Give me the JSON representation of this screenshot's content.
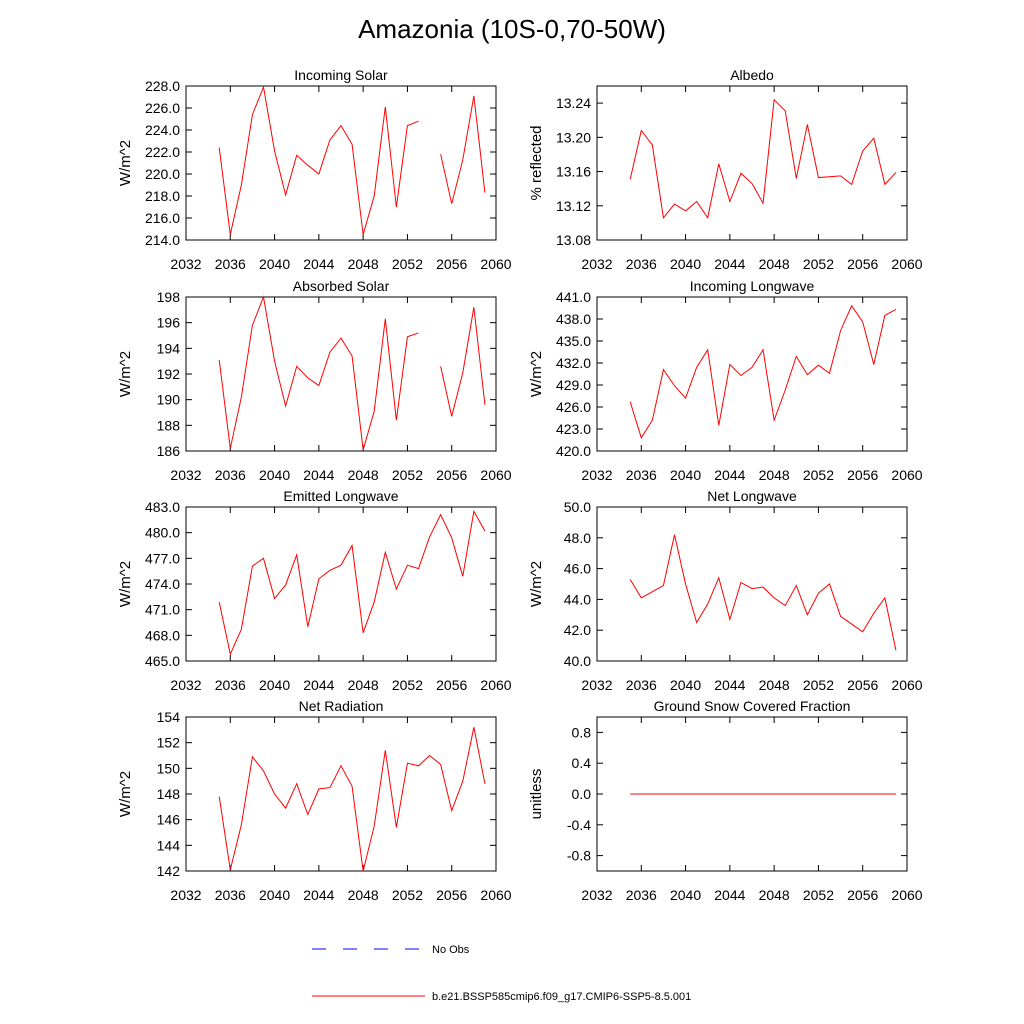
{
  "title": "Amazonia (10S-0,70-50W)",
  "colors": {
    "model": "#ff0000",
    "obs": "#0000ff",
    "axis": "#000000"
  },
  "legend": {
    "obs_label": "No Obs",
    "model_label": "b.e21.BSSP585cmip6.f09_g17.CMIP6-SSP5-8.5.001"
  },
  "chart_data": [
    {
      "type": "line",
      "title": "Incoming Solar",
      "xlabel": "",
      "ylabel": "W/m^2",
      "xlim": [
        2032,
        2060
      ],
      "ylim": [
        214,
        228
      ],
      "xticks": [
        2032,
        2036,
        2040,
        2044,
        2048,
        2052,
        2056,
        2060
      ],
      "yticks": [
        214,
        216,
        218,
        220,
        222,
        224,
        226,
        228
      ],
      "ytick_labels": [
        "214.0",
        "216.0",
        "218.0",
        "220.0",
        "222.0",
        "224.0",
        "226.0",
        "228.0"
      ],
      "x": [
        2035,
        2036,
        2037,
        2038,
        2039,
        2040,
        2041,
        2042,
        2043,
        2044,
        2045,
        2046,
        2047,
        2048,
        2049,
        2050,
        2051,
        2052,
        2053,
        2054,
        2055,
        2056,
        2057,
        2058,
        2059
      ],
      "series": [
        {
          "name": "b.e21.BSSP585cmip6.f09_g17.CMIP6-SSP5-8.5.001",
          "values": [
            222.4,
            214.5,
            219.0,
            225.4,
            227.9,
            222.1,
            218.1,
            221.7,
            220.8,
            220.0,
            223.1,
            224.4,
            222.7,
            214.5,
            218.0,
            226.1,
            217.0,
            224.4,
            224.8,
            null,
            221.8,
            217.3,
            221.3,
            227.1,
            218.3
          ]
        }
      ]
    },
    {
      "type": "line",
      "title": "Albedo",
      "xlabel": "",
      "ylabel": "% reflected",
      "xlim": [
        2032,
        2060
      ],
      "ylim": [
        13.08,
        13.26
      ],
      "xticks": [
        2032,
        2036,
        2040,
        2044,
        2048,
        2052,
        2056,
        2060
      ],
      "yticks": [
        13.08,
        13.12,
        13.16,
        13.2,
        13.24
      ],
      "ytick_labels": [
        "13.08",
        "13.12",
        "13.16",
        "13.20",
        "13.24"
      ],
      "x": [
        2035,
        2036,
        2037,
        2038,
        2039,
        2040,
        2041,
        2042,
        2043,
        2044,
        2045,
        2046,
        2047,
        2048,
        2049,
        2050,
        2051,
        2052,
        2053,
        2054,
        2055,
        2056,
        2057,
        2058,
        2059
      ],
      "series": [
        {
          "name": "b.e21.BSSP585cmip6.f09_g17.CMIP6-SSP5-8.5.001",
          "values": [
            13.151,
            13.208,
            13.191,
            13.106,
            13.122,
            13.114,
            13.125,
            13.106,
            13.169,
            13.125,
            13.158,
            13.146,
            13.123,
            13.244,
            13.231,
            13.152,
            13.215,
            13.153,
            13.154,
            13.155,
            13.145,
            13.184,
            13.199,
            13.145,
            13.159
          ]
        }
      ]
    },
    {
      "type": "line",
      "title": "Absorbed Solar",
      "xlabel": "",
      "ylabel": "W/m^2",
      "xlim": [
        2032,
        2060
      ],
      "ylim": [
        186,
        198
      ],
      "xticks": [
        2032,
        2036,
        2040,
        2044,
        2048,
        2052,
        2056,
        2060
      ],
      "yticks": [
        186,
        188,
        190,
        192,
        194,
        196,
        198
      ],
      "ytick_labels": [
        "186",
        "188",
        "190",
        "192",
        "194",
        "196",
        "198"
      ],
      "x": [
        2035,
        2036,
        2037,
        2038,
        2039,
        2040,
        2041,
        2042,
        2043,
        2044,
        2045,
        2046,
        2047,
        2048,
        2049,
        2050,
        2051,
        2052,
        2053,
        2054,
        2055,
        2056,
        2057,
        2058,
        2059
      ],
      "series": [
        {
          "name": "b.e21.BSSP585cmip6.f09_g17.CMIP6-SSP5-8.5.001",
          "values": [
            193.1,
            186.2,
            190.2,
            195.8,
            198.0,
            193.0,
            189.5,
            192.6,
            191.7,
            191.1,
            193.7,
            194.8,
            193.4,
            186.1,
            189.1,
            196.3,
            188.4,
            194.9,
            195.2,
            null,
            192.6,
            188.7,
            192.1,
            197.2,
            189.6
          ]
        }
      ]
    },
    {
      "type": "line",
      "title": "Incoming Longwave",
      "xlabel": "",
      "ylabel": "W/m^2",
      "xlim": [
        2032,
        2060
      ],
      "ylim": [
        420,
        441
      ],
      "xticks": [
        2032,
        2036,
        2040,
        2044,
        2048,
        2052,
        2056,
        2060
      ],
      "yticks": [
        420,
        423,
        426,
        429,
        432,
        435,
        438,
        441
      ],
      "ytick_labels": [
        "420.0",
        "423.0",
        "426.0",
        "429.0",
        "432.0",
        "435.0",
        "438.0",
        "441.0"
      ],
      "x": [
        2035,
        2036,
        2037,
        2038,
        2039,
        2040,
        2041,
        2042,
        2043,
        2044,
        2045,
        2046,
        2047,
        2048,
        2049,
        2050,
        2051,
        2052,
        2053,
        2054,
        2055,
        2056,
        2057,
        2058,
        2059
      ],
      "series": [
        {
          "name": "b.e21.BSSP585cmip6.f09_g17.CMIP6-SSP5-8.5.001",
          "values": [
            426.7,
            421.8,
            424.2,
            431.1,
            428.9,
            427.2,
            431.4,
            433.8,
            423.5,
            431.8,
            430.3,
            431.4,
            433.8,
            424.2,
            428.3,
            432.9,
            430.4,
            431.7,
            430.6,
            436.4,
            439.8,
            437.6,
            431.8,
            438.5,
            439.3
          ]
        }
      ]
    },
    {
      "type": "line",
      "title": "Emitted Longwave",
      "xlabel": "",
      "ylabel": "W/m^2",
      "xlim": [
        2032,
        2060
      ],
      "ylim": [
        465,
        483
      ],
      "xticks": [
        2032,
        2036,
        2040,
        2044,
        2048,
        2052,
        2056,
        2060
      ],
      "yticks": [
        465,
        468,
        471,
        474,
        477,
        480,
        483
      ],
      "ytick_labels": [
        "465.0",
        "468.0",
        "471.0",
        "474.0",
        "477.0",
        "480.0",
        "483.0"
      ],
      "x": [
        2035,
        2036,
        2037,
        2038,
        2039,
        2040,
        2041,
        2042,
        2043,
        2044,
        2045,
        2046,
        2047,
        2048,
        2049,
        2050,
        2051,
        2052,
        2053,
        2054,
        2055,
        2056,
        2057,
        2058,
        2059
      ],
      "series": [
        {
          "name": "b.e21.BSSP585cmip6.f09_g17.CMIP6-SSP5-8.5.001",
          "values": [
            471.9,
            465.8,
            468.7,
            476.1,
            477.0,
            472.3,
            473.9,
            477.4,
            469.0,
            474.6,
            475.6,
            476.2,
            478.5,
            468.3,
            471.9,
            477.7,
            473.4,
            476.2,
            475.8,
            479.5,
            482.1,
            479.4,
            474.9,
            482.5,
            480.2
          ]
        }
      ]
    },
    {
      "type": "line",
      "title": "Net Longwave",
      "xlabel": "",
      "ylabel": "W/m^2",
      "xlim": [
        2032,
        2060
      ],
      "ylim": [
        40,
        50
      ],
      "xticks": [
        2032,
        2036,
        2040,
        2044,
        2048,
        2052,
        2056,
        2060
      ],
      "yticks": [
        40,
        42,
        44,
        46,
        48,
        50
      ],
      "ytick_labels": [
        "40.0",
        "42.0",
        "44.0",
        "46.0",
        "48.0",
        "50.0"
      ],
      "x": [
        2035,
        2036,
        2037,
        2038,
        2039,
        2040,
        2041,
        2042,
        2043,
        2044,
        2045,
        2046,
        2047,
        2048,
        2049,
        2050,
        2051,
        2052,
        2053,
        2054,
        2055,
        2056,
        2057,
        2058,
        2059
      ],
      "series": [
        {
          "name": "b.e21.BSSP585cmip6.f09_g17.CMIP6-SSP5-8.5.001",
          "values": [
            45.3,
            44.1,
            44.5,
            44.9,
            48.2,
            45.0,
            42.5,
            43.7,
            45.4,
            42.7,
            45.1,
            44.7,
            44.8,
            44.1,
            43.6,
            44.9,
            43.0,
            44.4,
            45.0,
            42.9,
            42.4,
            41.9,
            43.1,
            44.1,
            40.7
          ]
        }
      ]
    },
    {
      "type": "line",
      "title": "Net Radiation",
      "xlabel": "",
      "ylabel": "W/m^2",
      "xlim": [
        2032,
        2060
      ],
      "ylim": [
        142,
        154
      ],
      "xticks": [
        2032,
        2036,
        2040,
        2044,
        2048,
        2052,
        2056,
        2060
      ],
      "yticks": [
        142,
        144,
        146,
        148,
        150,
        152,
        154
      ],
      "ytick_labels": [
        "142",
        "144",
        "146",
        "148",
        "150",
        "152",
        "154"
      ],
      "x": [
        2035,
        2036,
        2037,
        2038,
        2039,
        2040,
        2041,
        2042,
        2043,
        2044,
        2045,
        2046,
        2047,
        2048,
        2049,
        2050,
        2051,
        2052,
        2053,
        2054,
        2055,
        2056,
        2057,
        2058,
        2059
      ],
      "series": [
        {
          "name": "b.e21.BSSP585cmip6.f09_g17.CMIP6-SSP5-8.5.001",
          "values": [
            147.8,
            142.1,
            145.6,
            150.9,
            149.8,
            148.0,
            146.9,
            148.8,
            146.4,
            148.4,
            148.5,
            150.2,
            148.6,
            142.0,
            145.5,
            151.4,
            145.4,
            150.4,
            150.2,
            151.0,
            150.3,
            146.7,
            149.0,
            153.2,
            148.8
          ]
        }
      ]
    },
    {
      "type": "line",
      "title": "Ground Snow Covered Fraction",
      "xlabel": "",
      "ylabel": "unitless",
      "xlim": [
        2032,
        2060
      ],
      "ylim": [
        -1.0,
        1.0
      ],
      "xticks": [
        2032,
        2036,
        2040,
        2044,
        2048,
        2052,
        2056,
        2060
      ],
      "yticks": [
        -0.8,
        -0.4,
        0.0,
        0.4,
        0.8
      ],
      "ytick_labels": [
        "-0.8",
        "-0.4",
        "0.0",
        "0.4",
        "0.8"
      ],
      "x": [
        2035,
        2036,
        2037,
        2038,
        2039,
        2040,
        2041,
        2042,
        2043,
        2044,
        2045,
        2046,
        2047,
        2048,
        2049,
        2050,
        2051,
        2052,
        2053,
        2054,
        2055,
        2056,
        2057,
        2058,
        2059
      ],
      "series": [
        {
          "name": "b.e21.BSSP585cmip6.f09_g17.CMIP6-SSP5-8.5.001",
          "values": [
            0,
            0,
            0,
            0,
            0,
            0,
            0,
            0,
            0,
            0,
            0,
            0,
            0,
            0,
            0,
            0,
            0,
            0,
            0,
            0,
            0,
            0,
            0,
            0,
            0
          ]
        }
      ]
    }
  ]
}
